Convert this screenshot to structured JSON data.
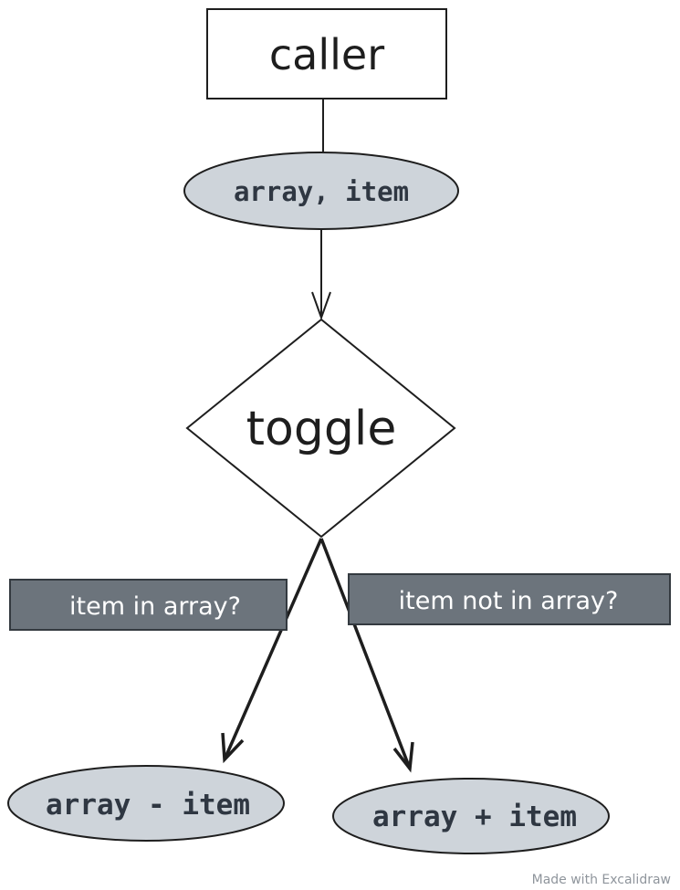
{
  "nodes": {
    "caller": "caller",
    "args": "array, item",
    "toggle": "toggle",
    "remove_result": "array - item",
    "add_result": "array + item"
  },
  "edges": {
    "left_condition": "item in array?",
    "right_condition": "item not in array?"
  },
  "watermark": "Made with Excalidraw",
  "colors": {
    "stroke": "#1e1e1e",
    "ellipse_fill": "#ced4da",
    "label_fill": "#6c747c",
    "label_text": "#ffffff",
    "background": "#ffffff"
  }
}
